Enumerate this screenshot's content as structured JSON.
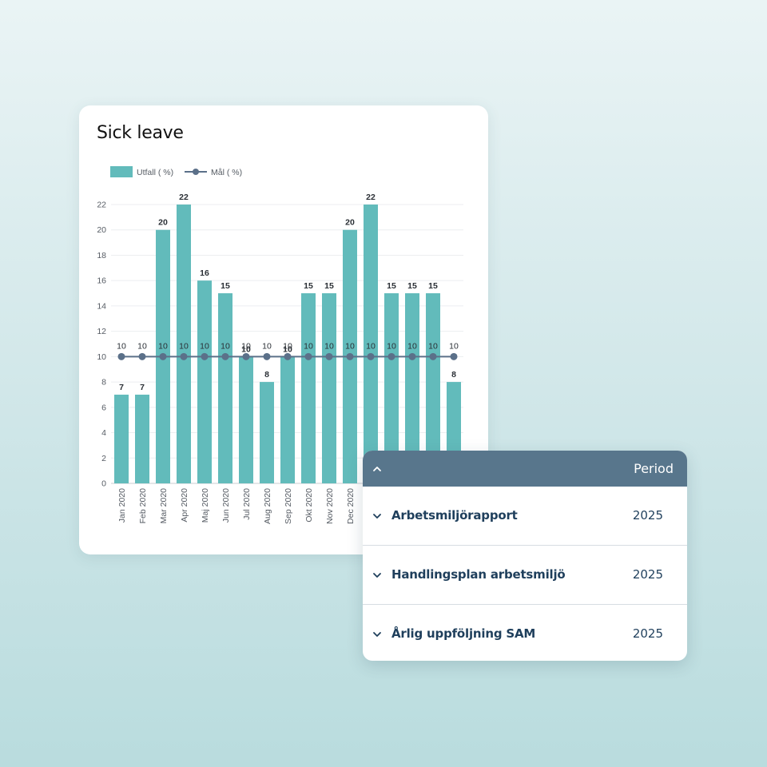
{
  "chart_data": {
    "type": "bar",
    "title": "Sick leave",
    "categories": [
      "Jan 2020",
      "Feb 2020",
      "Mar 2020",
      "Apr 2020",
      "Maj 2020",
      "Jun 2020",
      "Jul 2020",
      "Aug 2020",
      "Sep 2020",
      "Okt 2020",
      "Nov 2020",
      "Dec 2020",
      "",
      "",
      "",
      "",
      ""
    ],
    "series": [
      {
        "name": "Utfall ( %)",
        "type": "bar",
        "color": "#62bbbb",
        "values": [
          7,
          7,
          20,
          22,
          16,
          15,
          10,
          8,
          10,
          15,
          15,
          20,
          22,
          15,
          15,
          15,
          8
        ]
      },
      {
        "name": "Mål ( %)",
        "type": "line",
        "color": "#5b7089",
        "values": [
          10,
          10,
          10,
          10,
          10,
          10,
          10,
          10,
          10,
          10,
          10,
          10,
          10,
          10,
          10,
          10,
          10
        ]
      }
    ],
    "ylim": [
      0,
      22
    ],
    "yticks": [
      0,
      2,
      4,
      6,
      8,
      10,
      12,
      14,
      16,
      18,
      20,
      22
    ],
    "grid": true,
    "legend": "top-left",
    "data_labels": true
  },
  "period_panel": {
    "header_label": "Period",
    "rows": [
      {
        "label": "Arbetsmiljörapport",
        "year": "2025"
      },
      {
        "label": "Handlingsplan arbetsmiljö",
        "year": "2025"
      },
      {
        "label": "Årlig uppföljning SAM",
        "year": "2025"
      }
    ]
  }
}
